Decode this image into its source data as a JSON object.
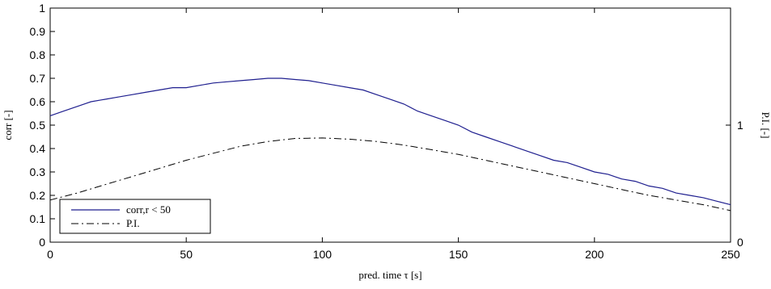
{
  "chart_data": {
    "type": "line",
    "xlabel": "pred. time τ [s]",
    "ylabel": "corr [-]",
    "y2label": "P.I. [-]",
    "xlim": [
      0,
      250
    ],
    "ylim": [
      0,
      1
    ],
    "y2lim": [
      0,
      2
    ],
    "xticks": [
      0,
      50,
      100,
      150,
      200,
      250
    ],
    "xtick_labels": [
      "0",
      "50",
      "100",
      "150",
      "200",
      "250"
    ],
    "yticks": [
      0,
      0.1,
      0.2,
      0.3,
      0.4,
      0.5,
      0.6,
      0.7,
      0.8,
      0.9,
      1
    ],
    "ytick_labels": [
      "0",
      "0.1",
      "0.2",
      "0.3",
      "0.4",
      "0.5",
      "0.6",
      "0.7",
      "0.8",
      "0.9",
      "1"
    ],
    "y2ticks": [
      0,
      1
    ],
    "y2tick_labels": [
      "0",
      "1"
    ],
    "grid": false,
    "legend_position": "bottom-left",
    "series": [
      {
        "name": "corr,r < 50",
        "axis": "left",
        "color": "#1f1f8f",
        "style": "solid",
        "x": [
          0,
          5,
          10,
          15,
          20,
          25,
          30,
          35,
          40,
          45,
          50,
          55,
          60,
          65,
          70,
          75,
          80,
          85,
          90,
          95,
          100,
          105,
          110,
          115,
          120,
          125,
          130,
          135,
          140,
          145,
          150,
          155,
          160,
          165,
          170,
          175,
          180,
          185,
          190,
          195,
          200,
          205,
          210,
          215,
          220,
          225,
          230,
          235,
          240,
          245,
          250
        ],
        "y": [
          0.54,
          0.56,
          0.58,
          0.6,
          0.61,
          0.62,
          0.63,
          0.64,
          0.65,
          0.66,
          0.66,
          0.67,
          0.68,
          0.685,
          0.69,
          0.695,
          0.7,
          0.7,
          0.695,
          0.69,
          0.68,
          0.67,
          0.66,
          0.65,
          0.63,
          0.61,
          0.59,
          0.56,
          0.54,
          0.52,
          0.5,
          0.47,
          0.45,
          0.43,
          0.41,
          0.39,
          0.37,
          0.35,
          0.34,
          0.32,
          0.3,
          0.29,
          0.27,
          0.26,
          0.24,
          0.23,
          0.21,
          0.2,
          0.19,
          0.175,
          0.16
        ]
      },
      {
        "name": "P.I.",
        "axis": "left",
        "color": "#000000",
        "style": "dashdot",
        "x": [
          0,
          10,
          20,
          30,
          40,
          50,
          60,
          70,
          80,
          90,
          100,
          110,
          120,
          130,
          140,
          150,
          160,
          170,
          180,
          190,
          200,
          210,
          220,
          230,
          240,
          250
        ],
        "y": [
          0.18,
          0.21,
          0.245,
          0.28,
          0.315,
          0.35,
          0.38,
          0.41,
          0.43,
          0.443,
          0.445,
          0.44,
          0.43,
          0.415,
          0.395,
          0.375,
          0.35,
          0.325,
          0.3,
          0.275,
          0.25,
          0.225,
          0.2,
          0.18,
          0.16,
          0.135
        ]
      }
    ]
  }
}
